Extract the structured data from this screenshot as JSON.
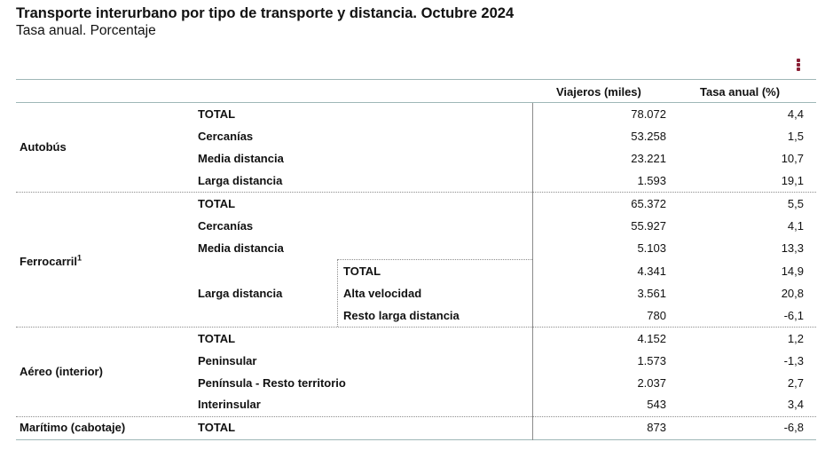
{
  "title": "Transporte interurbano por tipo de transporte y distancia. Octubre 2024",
  "subtitle": "Tasa anual. Porcentaje",
  "menu_icon": "kebab-menu-icon",
  "accent_color": "#8a1f35",
  "headers": {
    "viajeros": "Viajeros (miles)",
    "tasa": "Tasa anual (%)"
  },
  "groups": {
    "autobus": "Autobús",
    "ferrocarril": "Ferrocarril",
    "ferrocarril_sup": "1",
    "aereo": "Aéreo (interior)",
    "maritimo": "Marítimo (cabotaje)"
  },
  "rows": [
    {
      "label": "TOTAL",
      "sublabel": "",
      "viajeros": "78.072",
      "tasa": "4,4"
    },
    {
      "label": "Cercanías",
      "sublabel": "",
      "viajeros": "53.258",
      "tasa": "1,5"
    },
    {
      "label": "Media distancia",
      "sublabel": "",
      "viajeros": "23.221",
      "tasa": "10,7"
    },
    {
      "label": "Larga distancia",
      "sublabel": "",
      "viajeros": "1.593",
      "tasa": "19,1"
    },
    {
      "label": "TOTAL",
      "sublabel": "",
      "viajeros": "65.372",
      "tasa": "5,5"
    },
    {
      "label": "Cercanías",
      "sublabel": "",
      "viajeros": "55.927",
      "tasa": "4,1"
    },
    {
      "label": "Media distancia",
      "sublabel": "",
      "viajeros": "5.103",
      "tasa": "13,3"
    },
    {
      "label": "",
      "sublabel": "TOTAL",
      "viajeros": "4.341",
      "tasa": "14,9"
    },
    {
      "label": "Larga distancia",
      "sublabel": "Alta velocidad",
      "viajeros": "3.561",
      "tasa": "20,8"
    },
    {
      "label": "",
      "sublabel": "Resto larga distancia",
      "viajeros": "780",
      "tasa": "-6,1"
    },
    {
      "label": "TOTAL",
      "sublabel": "",
      "viajeros": "4.152",
      "tasa": "1,2"
    },
    {
      "label": "Peninsular",
      "sublabel": "",
      "viajeros": "1.573",
      "tasa": "-1,3"
    },
    {
      "label": "Península - Resto territorio",
      "sublabel": "",
      "viajeros": "2.037",
      "tasa": "2,7"
    },
    {
      "label": "Interinsular",
      "sublabel": "",
      "viajeros": "543",
      "tasa": "3,4"
    },
    {
      "label": "TOTAL",
      "sublabel": "",
      "viajeros": "873",
      "tasa": "-6,8"
    }
  ]
}
